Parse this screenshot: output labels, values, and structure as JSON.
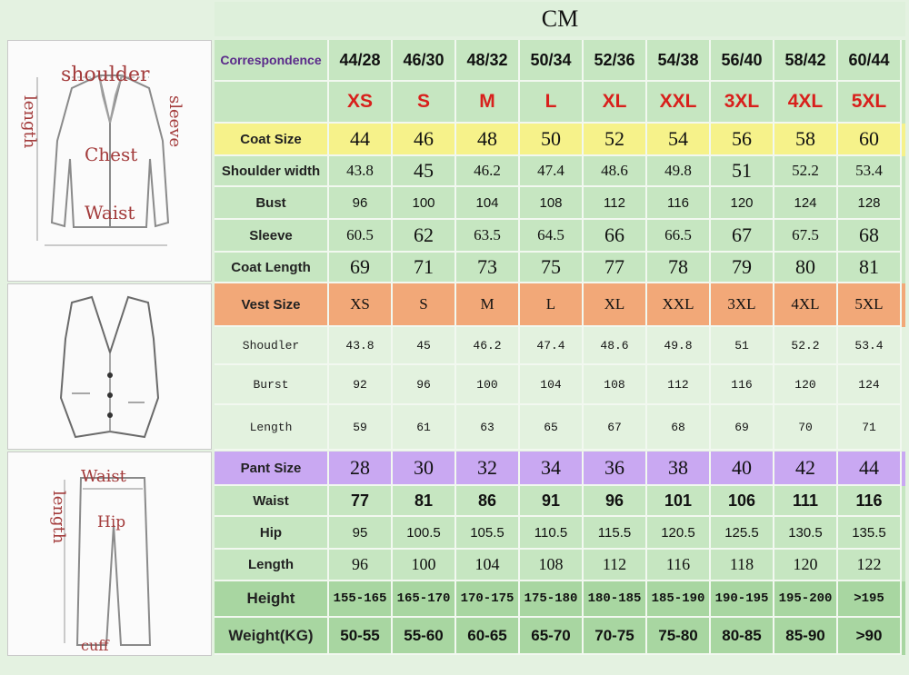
{
  "unit": "CM",
  "coat": {
    "header": {
      "label": "Correspondence",
      "values": [
        "44/28",
        "46/30",
        "48/32",
        "50/34",
        "52/36",
        "54/38",
        "56/40",
        "58/42",
        "60/44"
      ]
    },
    "letters": [
      "XS",
      "S",
      "M",
      "L",
      "XL",
      "XXL",
      "3XL",
      "4XL",
      "5XL"
    ],
    "size": {
      "label": "Coat Size",
      "values": [
        "44",
        "46",
        "48",
        "50",
        "52",
        "54",
        "56",
        "58",
        "60"
      ]
    },
    "shoulder": {
      "label": "Shoulder width",
      "values": [
        "43.8",
        "45",
        "46.2",
        "47.4",
        "48.6",
        "49.8",
        "51",
        "52.2",
        "53.4"
      ]
    },
    "bust": {
      "label": "Bust",
      "values": [
        "96",
        "100",
        "104",
        "108",
        "112",
        "116",
        "120",
        "124",
        "128"
      ]
    },
    "sleeve": {
      "label": "Sleeve",
      "values": [
        "60.5",
        "62",
        "63.5",
        "64.5",
        "66",
        "66.5",
        "67",
        "67.5",
        "68"
      ]
    },
    "length": {
      "label": "Coat Length",
      "values": [
        "69",
        "71",
        "73",
        "75",
        "77",
        "78",
        "79",
        "80",
        "81"
      ]
    }
  },
  "vest": {
    "size": {
      "label": "Vest Size",
      "values": [
        "XS",
        "S",
        "M",
        "L",
        "XL",
        "XXL",
        "3XL",
        "4XL",
        "5XL"
      ]
    },
    "shoulder": {
      "label": "Shoudler",
      "values": [
        "43.8",
        "45",
        "46.2",
        "47.4",
        "48.6",
        "49.8",
        "51",
        "52.2",
        "53.4"
      ]
    },
    "bust": {
      "label": "Burst",
      "values": [
        "92",
        "96",
        "100",
        "104",
        "108",
        "112",
        "116",
        "120",
        "124"
      ]
    },
    "length": {
      "label": "Length",
      "values": [
        "59",
        "61",
        "63",
        "65",
        "67",
        "68",
        "69",
        "70",
        "71"
      ]
    }
  },
  "pant": {
    "size": {
      "label": "Pant Size",
      "values": [
        "28",
        "30",
        "32",
        "34",
        "36",
        "38",
        "40",
        "42",
        "44"
      ]
    },
    "waist": {
      "label": "Waist",
      "values": [
        "77",
        "81",
        "86",
        "91",
        "96",
        "101",
        "106",
        "111",
        "116"
      ]
    },
    "hip": {
      "label": "Hip",
      "values": [
        "95",
        "100.5",
        "105.5",
        "110.5",
        "115.5",
        "120.5",
        "125.5",
        "130.5",
        "135.5"
      ]
    },
    "length": {
      "label": "Length",
      "values": [
        "96",
        "100",
        "104",
        "108",
        "112",
        "116",
        "118",
        "120",
        "122"
      ]
    }
  },
  "body": {
    "height": {
      "label": "Height",
      "values": [
        "155-165",
        "165-170",
        "170-175",
        "175-180",
        "180-185",
        "185-190",
        "190-195",
        "195-200",
        ">195"
      ]
    },
    "weight": {
      "label": "Weight(KG)",
      "values": [
        "50-55",
        "55-60",
        "60-65",
        "65-70",
        "70-75",
        "75-80",
        "80-85",
        "85-90",
        ">90"
      ]
    }
  },
  "diagram_labels": {
    "coat": {
      "shoulder": "shoulder",
      "sleeve": "sleeve",
      "length": "length",
      "chest": "Chest",
      "waist": "Waist"
    },
    "pant": {
      "waist": "Waist",
      "length": "length",
      "hip": "Hip",
      "cuff": "cuff"
    }
  },
  "colors": {
    "title_bg": "#def0db",
    "row_green": "#c6e6c1",
    "row_light": "#d9eed5",
    "coat_size_bg": "#f6f28a",
    "vest_size_bg": "#f2a878",
    "pant_size_bg": "#c9a8f2",
    "body_bg": "#a8d6a1",
    "vest_rows_bg": "#e3f2df",
    "label_text": "#222222",
    "letter_red": "#d8201c",
    "correspondence_purple": "#5a2a8a",
    "diagram_label": "#a33b3b"
  }
}
